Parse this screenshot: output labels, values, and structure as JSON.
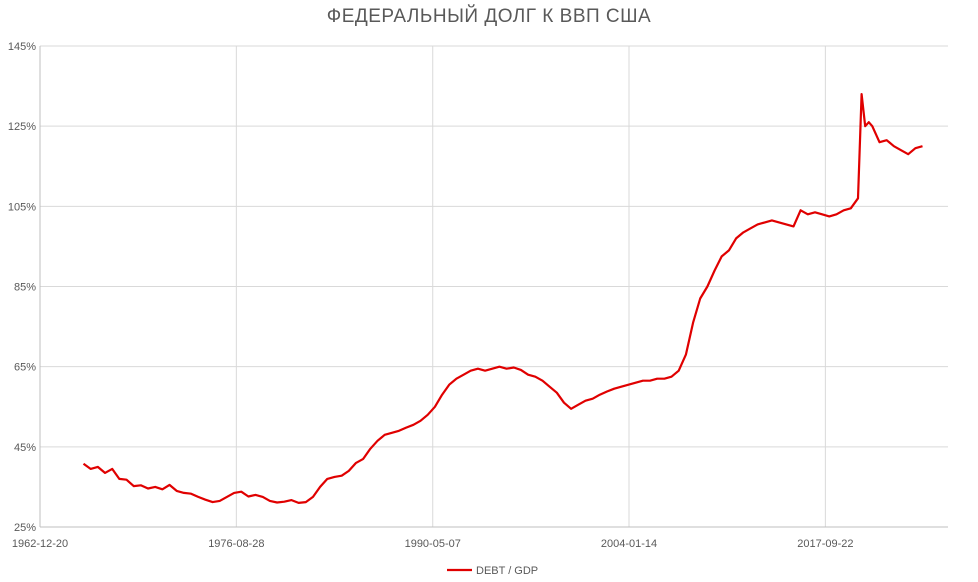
{
  "chart_data": {
    "type": "line",
    "title": "ФЕДЕРАЛЬНЫЙ ДОЛГ К ВВП США",
    "xlabel": "",
    "ylabel": "",
    "x_tick_labels": [
      "1962-12-20",
      "1976-08-28",
      "1990-05-07",
      "2004-01-14",
      "2017-09-22"
    ],
    "y_tick_labels": [
      "25%",
      "45%",
      "65%",
      "85%",
      "105%",
      "125%",
      "145%"
    ],
    "x_range": [
      "1962-12-20",
      "2026-04-10"
    ],
    "ylim": [
      25,
      145
    ],
    "grid": true,
    "legend_position": "bottom-center",
    "series": [
      {
        "name": "DEBT / GDP",
        "color": "#e00000",
        "x": [
          1966.0,
          1966.5,
          1967.0,
          1967.5,
          1968.0,
          1968.5,
          1969.0,
          1969.5,
          1970.0,
          1970.5,
          1971.0,
          1971.5,
          1972.0,
          1972.5,
          1973.0,
          1973.5,
          1974.0,
          1974.5,
          1975.0,
          1975.5,
          1976.0,
          1976.5,
          1977.0,
          1977.5,
          1978.0,
          1978.5,
          1979.0,
          1979.5,
          1980.0,
          1980.5,
          1981.0,
          1981.5,
          1982.0,
          1982.5,
          1983.0,
          1983.5,
          1984.0,
          1984.5,
          1985.0,
          1985.5,
          1986.0,
          1986.5,
          1987.0,
          1987.5,
          1988.0,
          1988.5,
          1989.0,
          1989.5,
          1990.0,
          1990.5,
          1991.0,
          1991.5,
          1992.0,
          1992.5,
          1993.0,
          1993.5,
          1994.0,
          1994.5,
          1995.0,
          1995.5,
          1996.0,
          1996.5,
          1997.0,
          1997.5,
          1998.0,
          1998.5,
          1999.0,
          1999.5,
          2000.0,
          2000.5,
          2001.0,
          2001.5,
          2002.0,
          2002.5,
          2003.0,
          2003.5,
          2004.0,
          2004.5,
          2005.0,
          2005.5,
          2006.0,
          2006.5,
          2007.0,
          2007.5,
          2008.0,
          2008.5,
          2009.0,
          2009.5,
          2010.0,
          2010.5,
          2011.0,
          2011.5,
          2012.0,
          2012.5,
          2013.0,
          2013.5,
          2014.0,
          2014.5,
          2015.0,
          2015.5,
          2016.0,
          2016.5,
          2017.0,
          2017.5,
          2018.0,
          2018.5,
          2019.0,
          2019.5,
          2020.0,
          2020.25,
          2020.5,
          2020.75,
          2021.0,
          2021.5,
          2022.0,
          2022.5,
          2023.0,
          2023.5,
          2024.0,
          2024.5
        ],
        "y": [
          40.8,
          39.5,
          40.0,
          38.5,
          39.5,
          37.0,
          36.8,
          35.2,
          35.4,
          34.6,
          35.0,
          34.4,
          35.5,
          34.0,
          33.5,
          33.3,
          32.5,
          31.8,
          31.2,
          31.5,
          32.5,
          33.5,
          33.8,
          32.6,
          33.0,
          32.5,
          31.5,
          31.1,
          31.3,
          31.7,
          31.0,
          31.2,
          32.5,
          35.0,
          37.0,
          37.5,
          37.8,
          39.0,
          41.0,
          42.0,
          44.5,
          46.5,
          48.0,
          48.5,
          49.0,
          49.8,
          50.5,
          51.5,
          53.0,
          55.0,
          58.0,
          60.5,
          62.0,
          63.0,
          64.0,
          64.5,
          64.0,
          64.5,
          65.0,
          64.5,
          64.8,
          64.2,
          63.0,
          62.5,
          61.5,
          60.0,
          58.5,
          56.0,
          54.5,
          55.5,
          56.5,
          57.0,
          58.0,
          58.8,
          59.5,
          60.0,
          60.5,
          61.0,
          61.5,
          61.5,
          62.0,
          62.0,
          62.5,
          64.0,
          68.0,
          76.0,
          82.0,
          85.0,
          89.0,
          92.5,
          94.0,
          97.0,
          98.5,
          99.5,
          100.5,
          101.0,
          101.5,
          101.0,
          100.5,
          100.0,
          104.0,
          103.0,
          103.5,
          103.0,
          102.5,
          103.0,
          104.0,
          104.5,
          107.0,
          133.0,
          125.0,
          126.0,
          125.0,
          121.0,
          121.5,
          120.0,
          119.0,
          118.0,
          119.5,
          120.0
        ]
      }
    ]
  }
}
